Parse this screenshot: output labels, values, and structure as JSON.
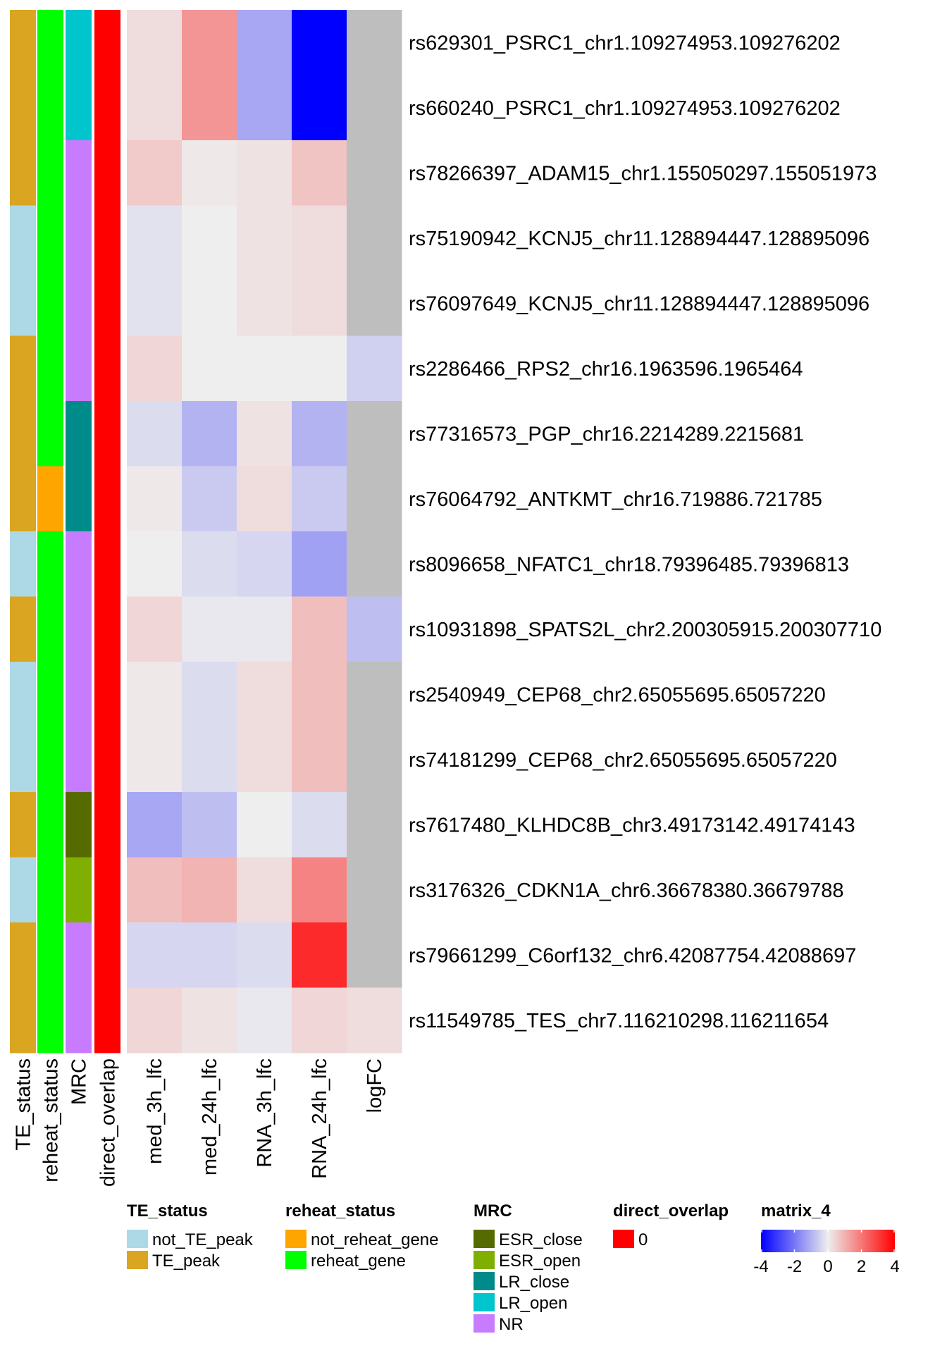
{
  "chart_data": {
    "type": "heatmap",
    "rows": [
      "rs629301_PSRC1_chr1.109274953.109276202",
      "rs660240_PSRC1_chr1.109274953.109276202",
      "rs78266397_ADAM15_chr1.155050297.155051973",
      "rs75190942_KCNJ5_chr11.128894447.128895096",
      "rs76097649_KCNJ5_chr11.128894447.128895096",
      "rs2286466_RPS2_chr16.1963596.1965464",
      "rs77316573_PGP_chr16.2214289.2215681",
      "rs76064792_ANTKMT_chr16.719886.721785",
      "rs8096658_NFATC1_chr18.79396485.79396813",
      "rs10931898_SPATS2L_chr2.200305915.200307710",
      "rs2540949_CEP68_chr2.65055695.65057220",
      "rs74181299_CEP68_chr2.65055695.65057220",
      "rs7617480_KLHDC8B_chr3.49173142.49174143",
      "rs3176326_CDKN1A_chr6.36678380.36679788",
      "rs79661299_C6orf132_chr6.42087754.42088697",
      "rs11549785_TES_chr7.116210298.116211654"
    ],
    "annotation_columns": [
      "TE_status",
      "reheat_status",
      "MRC",
      "direct_overlap"
    ],
    "annotations": {
      "TE_status": [
        "TE_peak",
        "TE_peak",
        "TE_peak",
        "not_TE_peak",
        "not_TE_peak",
        "TE_peak",
        "TE_peak",
        "TE_peak",
        "not_TE_peak",
        "TE_peak",
        "not_TE_peak",
        "not_TE_peak",
        "TE_peak",
        "not_TE_peak",
        "TE_peak",
        "TE_peak"
      ],
      "reheat_status": [
        "reheat_gene",
        "reheat_gene",
        "reheat_gene",
        "reheat_gene",
        "reheat_gene",
        "reheat_gene",
        "reheat_gene",
        "not_reheat_gene",
        "reheat_gene",
        "reheat_gene",
        "reheat_gene",
        "reheat_gene",
        "reheat_gene",
        "reheat_gene",
        "reheat_gene",
        "reheat_gene"
      ],
      "MRC": [
        "LR_open",
        "LR_open",
        "NR",
        "NR",
        "NR",
        "NR",
        "LR_close",
        "LR_close",
        "NR",
        "NR",
        "NR",
        "NR",
        "ESR_close",
        "ESR_open",
        "NR",
        "NR"
      ],
      "direct_overlap": [
        "0",
        "0",
        "0",
        "0",
        "0",
        "0",
        "0",
        "0",
        "0",
        "0",
        "0",
        "0",
        "0",
        "0",
        "0",
        "0"
      ]
    },
    "value_columns": [
      "med_3h_lfc",
      "med_24h_lfc",
      "RNA_3h_lfc",
      "RNA_24h_lfc",
      "logFC"
    ],
    "values": [
      [
        0.3,
        1.5,
        -1.2,
        -4.5,
        null
      ],
      [
        0.3,
        1.5,
        -1.2,
        -4.5,
        null
      ],
      [
        0.6,
        0.1,
        0.2,
        0.7,
        null
      ],
      [
        -0.2,
        0.0,
        0.2,
        0.3,
        null
      ],
      [
        -0.2,
        0.0,
        0.2,
        0.3,
        null
      ],
      [
        0.4,
        0.0,
        0.0,
        0.0,
        -0.5
      ],
      [
        -0.3,
        -1.0,
        0.2,
        -1.0,
        null
      ],
      [
        0.1,
        -0.6,
        0.3,
        -0.6,
        null
      ],
      [
        0.0,
        -0.3,
        -0.4,
        -1.3,
        null
      ],
      [
        0.4,
        -0.1,
        -0.1,
        0.8,
        -0.8
      ],
      [
        0.1,
        -0.3,
        0.3,
        0.8,
        null
      ],
      [
        0.1,
        -0.3,
        0.3,
        0.8,
        null
      ],
      [
        -1.2,
        -0.8,
        0.0,
        -0.3,
        null
      ],
      [
        0.8,
        1.0,
        0.3,
        1.8,
        null
      ],
      [
        -0.4,
        -0.4,
        -0.3,
        3.3,
        null
      ],
      [
        0.4,
        0.2,
        -0.1,
        0.4,
        0.3
      ]
    ],
    "na_color": "#BEBEBE",
    "color_scale": {
      "min": -4,
      "mid": 0,
      "max": 4,
      "low": "#0000FF",
      "midcolor": "#EEEEEE",
      "high": "#FF0000"
    },
    "legends": [
      {
        "title": "TE_status",
        "items": [
          {
            "label": "not_TE_peak",
            "color": "#ADD8E6"
          },
          {
            "label": "TE_peak",
            "color": "#DAA520"
          }
        ]
      },
      {
        "title": "reheat_status",
        "items": [
          {
            "label": "not_reheat_gene",
            "color": "#FFA500"
          },
          {
            "label": "reheat_gene",
            "color": "#00FF00"
          }
        ]
      },
      {
        "title": "MRC",
        "items": [
          {
            "label": "ESR_close",
            "color": "#556B00"
          },
          {
            "label": "ESR_open",
            "color": "#7FAF00"
          },
          {
            "label": "LR_close",
            "color": "#008B8B"
          },
          {
            "label": "LR_open",
            "color": "#00C5CD"
          },
          {
            "label": "NR",
            "color": "#C77CFF"
          }
        ]
      },
      {
        "title": "direct_overlap",
        "items": [
          {
            "label": "0",
            "color": "#FF0000"
          }
        ]
      }
    ],
    "colorbar": {
      "title": "matrix_4",
      "ticks": [
        "-4",
        "-2",
        "0",
        "2",
        "4"
      ],
      "tick_values": [
        -4,
        -2,
        0,
        2,
        4
      ]
    }
  }
}
